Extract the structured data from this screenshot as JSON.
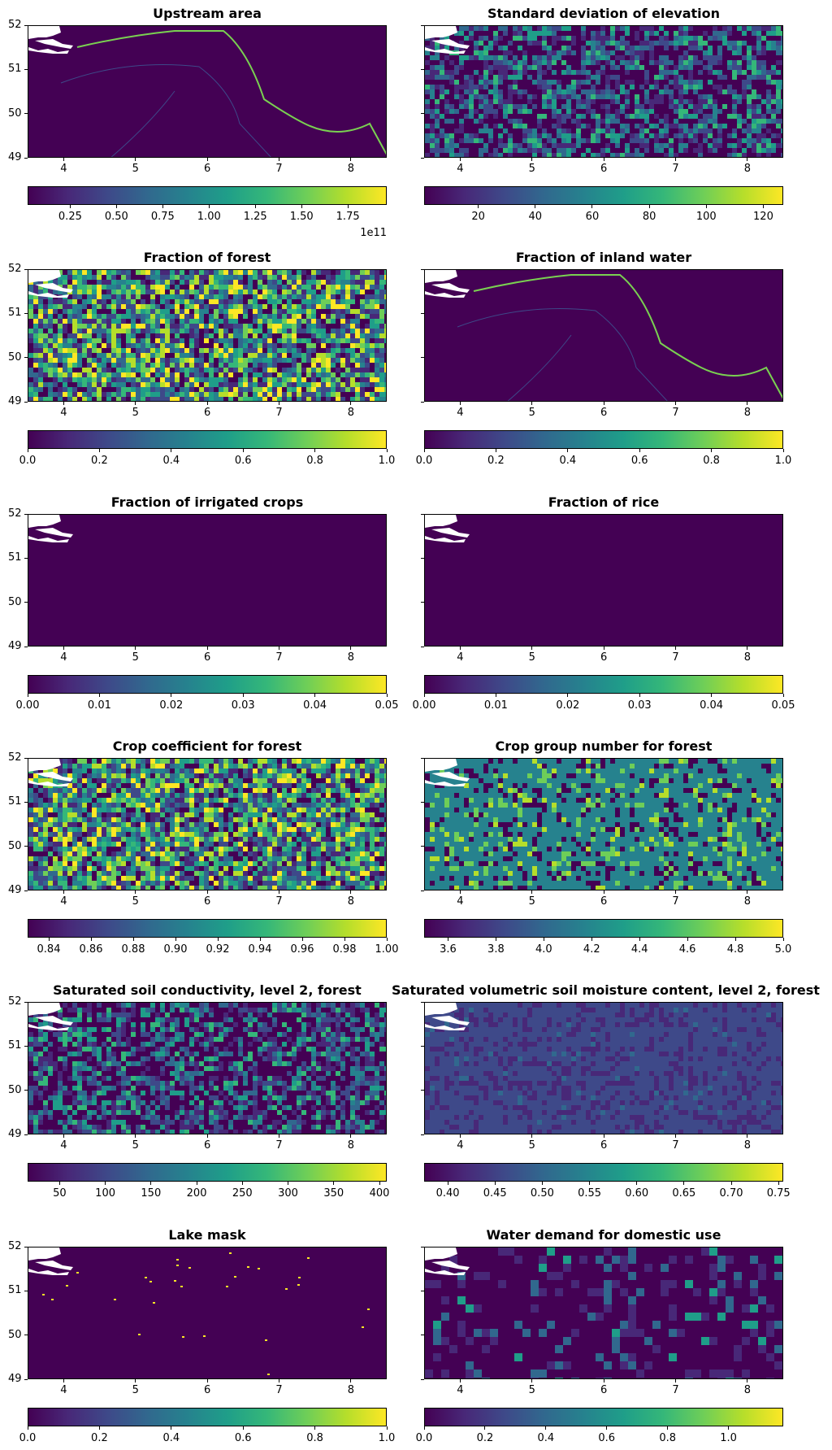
{
  "colors": {
    "background_low": "#440154",
    "land_mask": "#ffffff"
  },
  "axes_common": {
    "xlim": [
      3.5,
      8.5
    ],
    "ylim": [
      49,
      52
    ],
    "xticks": [
      "4",
      "5",
      "6",
      "7",
      "8"
    ],
    "xtick_values": [
      4,
      5,
      6,
      7,
      8
    ],
    "yticks": [
      "49",
      "50",
      "51",
      "52"
    ],
    "ytick_values": [
      49,
      50,
      51,
      52
    ]
  },
  "chart_data": [
    {
      "type": "heatmap",
      "title": "Upstream area",
      "colormap": "viridis",
      "clim": [
        0.02,
        1.96
      ],
      "cbar_ticks": [
        "0.25",
        "0.50",
        "0.75",
        "1.00",
        "1.25",
        "1.50",
        "1.75"
      ],
      "cbar_tick_values": [
        0.25,
        0.5,
        0.75,
        1.0,
        1.25,
        1.5,
        1.75
      ],
      "cbar_offset": "1e11",
      "texture": "rivers"
    },
    {
      "type": "heatmap",
      "title": "Standard deviation of elevation",
      "colormap": "viridis",
      "clim": [
        1,
        127
      ],
      "cbar_ticks": [
        "20",
        "40",
        "60",
        "80",
        "100",
        "120"
      ],
      "cbar_tick_values": [
        20,
        40,
        60,
        80,
        100,
        120
      ],
      "texture": "medium"
    },
    {
      "type": "heatmap",
      "title": "Fraction of forest",
      "colormap": "viridis",
      "clim": [
        0,
        1
      ],
      "cbar_ticks": [
        "0.0",
        "0.2",
        "0.4",
        "0.6",
        "0.8",
        "1.0"
      ],
      "cbar_tick_values": [
        0,
        0.2,
        0.4,
        0.6,
        0.8,
        1.0
      ],
      "texture": "high"
    },
    {
      "type": "heatmap",
      "title": "Fraction of inland water",
      "colormap": "viridis",
      "clim": [
        0,
        1
      ],
      "cbar_ticks": [
        "0.0",
        "0.2",
        "0.4",
        "0.6",
        "0.8",
        "1.0"
      ],
      "cbar_tick_values": [
        0,
        0.2,
        0.4,
        0.6,
        0.8,
        1.0
      ],
      "texture": "rivers"
    },
    {
      "type": "heatmap",
      "title": "Fraction of irrigated crops",
      "colormap": "viridis",
      "clim": [
        0,
        0.05
      ],
      "cbar_ticks": [
        "0.00",
        "0.01",
        "0.02",
        "0.03",
        "0.04",
        "0.05"
      ],
      "cbar_tick_values": [
        0,
        0.01,
        0.02,
        0.03,
        0.04,
        0.05
      ],
      "texture": "flat"
    },
    {
      "type": "heatmap",
      "title": "Fraction of rice",
      "colormap": "viridis",
      "clim": [
        0,
        0.05
      ],
      "cbar_ticks": [
        "0.00",
        "0.01",
        "0.02",
        "0.03",
        "0.04",
        "0.05"
      ],
      "cbar_tick_values": [
        0,
        0.01,
        0.02,
        0.03,
        0.04,
        0.05
      ],
      "texture": "flat"
    },
    {
      "type": "heatmap",
      "title": "Crop coefficient for forest",
      "colormap": "viridis",
      "clim": [
        0.83,
        1.0
      ],
      "cbar_ticks": [
        "0.84",
        "0.86",
        "0.88",
        "0.90",
        "0.92",
        "0.94",
        "0.96",
        "0.98",
        "1.00"
      ],
      "cbar_tick_values": [
        0.84,
        0.86,
        0.88,
        0.9,
        0.92,
        0.94,
        0.96,
        0.98,
        1.0
      ],
      "texture": "high"
    },
    {
      "type": "heatmap",
      "title": "Crop group number for forest",
      "colormap": "viridis",
      "clim": [
        3.5,
        5.0
      ],
      "cbar_ticks": [
        "3.6",
        "3.8",
        "4.0",
        "4.2",
        "4.4",
        "4.6",
        "4.8",
        "5.0"
      ],
      "cbar_tick_values": [
        3.6,
        3.8,
        4.0,
        4.2,
        4.4,
        4.6,
        4.8,
        5.0
      ],
      "texture": "teal"
    },
    {
      "type": "heatmap",
      "title": "Saturated soil conductivity, level 2, forest",
      "colormap": "viridis",
      "clim": [
        15,
        408
      ],
      "cbar_ticks": [
        "50",
        "100",
        "150",
        "200",
        "250",
        "300",
        "350",
        "400"
      ],
      "cbar_tick_values": [
        50,
        100,
        150,
        200,
        250,
        300,
        350,
        400
      ],
      "texture": "medium"
    },
    {
      "type": "heatmap",
      "title": "Saturated volumetric soil moisture content, level 2, forest",
      "colormap": "viridis",
      "clim": [
        0.375,
        0.755
      ],
      "cbar_ticks": [
        "0.40",
        "0.45",
        "0.50",
        "0.55",
        "0.60",
        "0.65",
        "0.70",
        "0.75"
      ],
      "cbar_tick_values": [
        0.4,
        0.45,
        0.5,
        0.55,
        0.6,
        0.65,
        0.7,
        0.75
      ],
      "texture": "low"
    },
    {
      "type": "heatmap",
      "title": "Lake mask",
      "colormap": "viridis",
      "clim": [
        0,
        1
      ],
      "cbar_ticks": [
        "0.0",
        "0.2",
        "0.4",
        "0.6",
        "0.8",
        "1.0"
      ],
      "cbar_tick_values": [
        0,
        0.2,
        0.4,
        0.6,
        0.8,
        1.0
      ],
      "texture": "dots"
    },
    {
      "type": "heatmap",
      "title": "Water demand for domestic use",
      "colormap": "viridis",
      "clim": [
        0,
        1.18
      ],
      "cbar_ticks": [
        "0.0",
        "0.2",
        "0.4",
        "0.6",
        "0.8",
        "1.0"
      ],
      "cbar_tick_values": [
        0,
        0.2,
        0.4,
        0.6,
        0.8,
        1.0
      ],
      "texture": "blocky"
    }
  ]
}
